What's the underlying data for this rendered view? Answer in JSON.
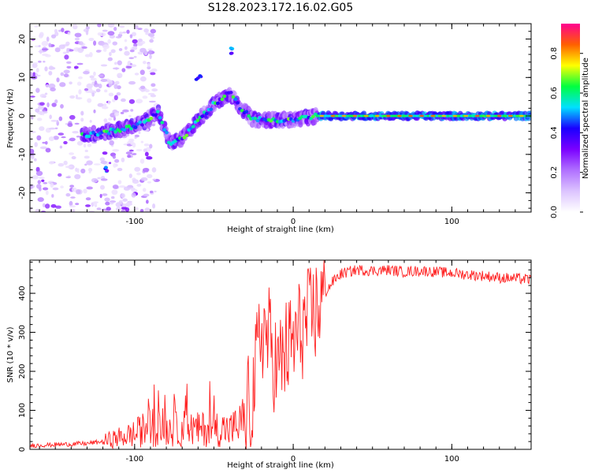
{
  "title": "S128.2023.172.16.02.G05",
  "chart_data": [
    {
      "type": "heatmap",
      "xlabel": "Height of straight line (km)",
      "ylabel": "Frequency (Hz)",
      "xlim": [
        -166,
        150
      ],
      "ylim": [
        -25,
        24
      ],
      "xticks": [
        -100,
        0,
        100
      ],
      "yticks": [
        -20,
        -10,
        0,
        10,
        20
      ],
      "colorbar": {
        "label": "Normalized spectral amplitude",
        "range": [
          0,
          0.95
        ],
        "ticks": [
          0.0,
          0.2,
          0.4,
          0.6,
          0.8
        ],
        "colormap": [
          "#ffffff",
          "#dcc4ff",
          "#b070ff",
          "#7b00ff",
          "#1a00ff",
          "#00e0ff",
          "#00ff40",
          "#ffff00",
          "#ff6000",
          "#ff0090"
        ]
      },
      "ridge": [
        {
          "x": -133,
          "y": -5
        },
        {
          "x": -115,
          "y": -4
        },
        {
          "x": -95,
          "y": -2
        },
        {
          "x": -85,
          "y": 1
        },
        {
          "x": -78,
          "y": -7
        },
        {
          "x": -70,
          "y": -6
        },
        {
          "x": -60,
          "y": -1
        },
        {
          "x": -50,
          "y": 3
        },
        {
          "x": -40,
          "y": 6
        },
        {
          "x": -35,
          "y": 3
        },
        {
          "x": -25,
          "y": -1
        },
        {
          "x": -10,
          "y": -1
        },
        {
          "x": 0,
          "y": -1
        },
        {
          "x": 15,
          "y": 0
        },
        {
          "x": 150,
          "y": 0
        }
      ],
      "isolated_features": [
        {
          "x": -118,
          "y": -14
        },
        {
          "x": -60,
          "y": 10
        },
        {
          "x": -40,
          "y": 17
        }
      ]
    },
    {
      "type": "line",
      "xlabel": "Height of straight line (km)",
      "ylabel": "SNR (10 * v/v)",
      "xlim": [
        -166,
        150
      ],
      "ylim": [
        0,
        485
      ],
      "xticks": [
        -100,
        0,
        100
      ],
      "yticks": [
        0,
        100,
        200,
        300,
        400
      ],
      "series": [
        {
          "color": "#ff2020",
          "x": [
            -166,
            -150,
            -130,
            -120,
            -110,
            -100,
            -95,
            -90,
            -85,
            -80,
            -75,
            -70,
            -60,
            -50,
            -40,
            -35,
            -30,
            -25,
            -22,
            -20,
            -18,
            -15,
            -10,
            -5,
            0,
            5,
            10,
            15,
            20,
            25,
            30,
            40,
            50,
            60,
            70,
            80,
            90,
            100,
            110,
            120,
            130,
            140,
            150
          ],
          "y": [
            10,
            12,
            15,
            20,
            30,
            40,
            50,
            60,
            60,
            55,
            50,
            55,
            50,
            55,
            50,
            60,
            80,
            150,
            250,
            310,
            300,
            280,
            200,
            250,
            270,
            310,
            330,
            360,
            400,
            430,
            450,
            460,
            458,
            460,
            455,
            458,
            455,
            452,
            448,
            445,
            440,
            438,
            435
          ]
        }
      ]
    }
  ]
}
